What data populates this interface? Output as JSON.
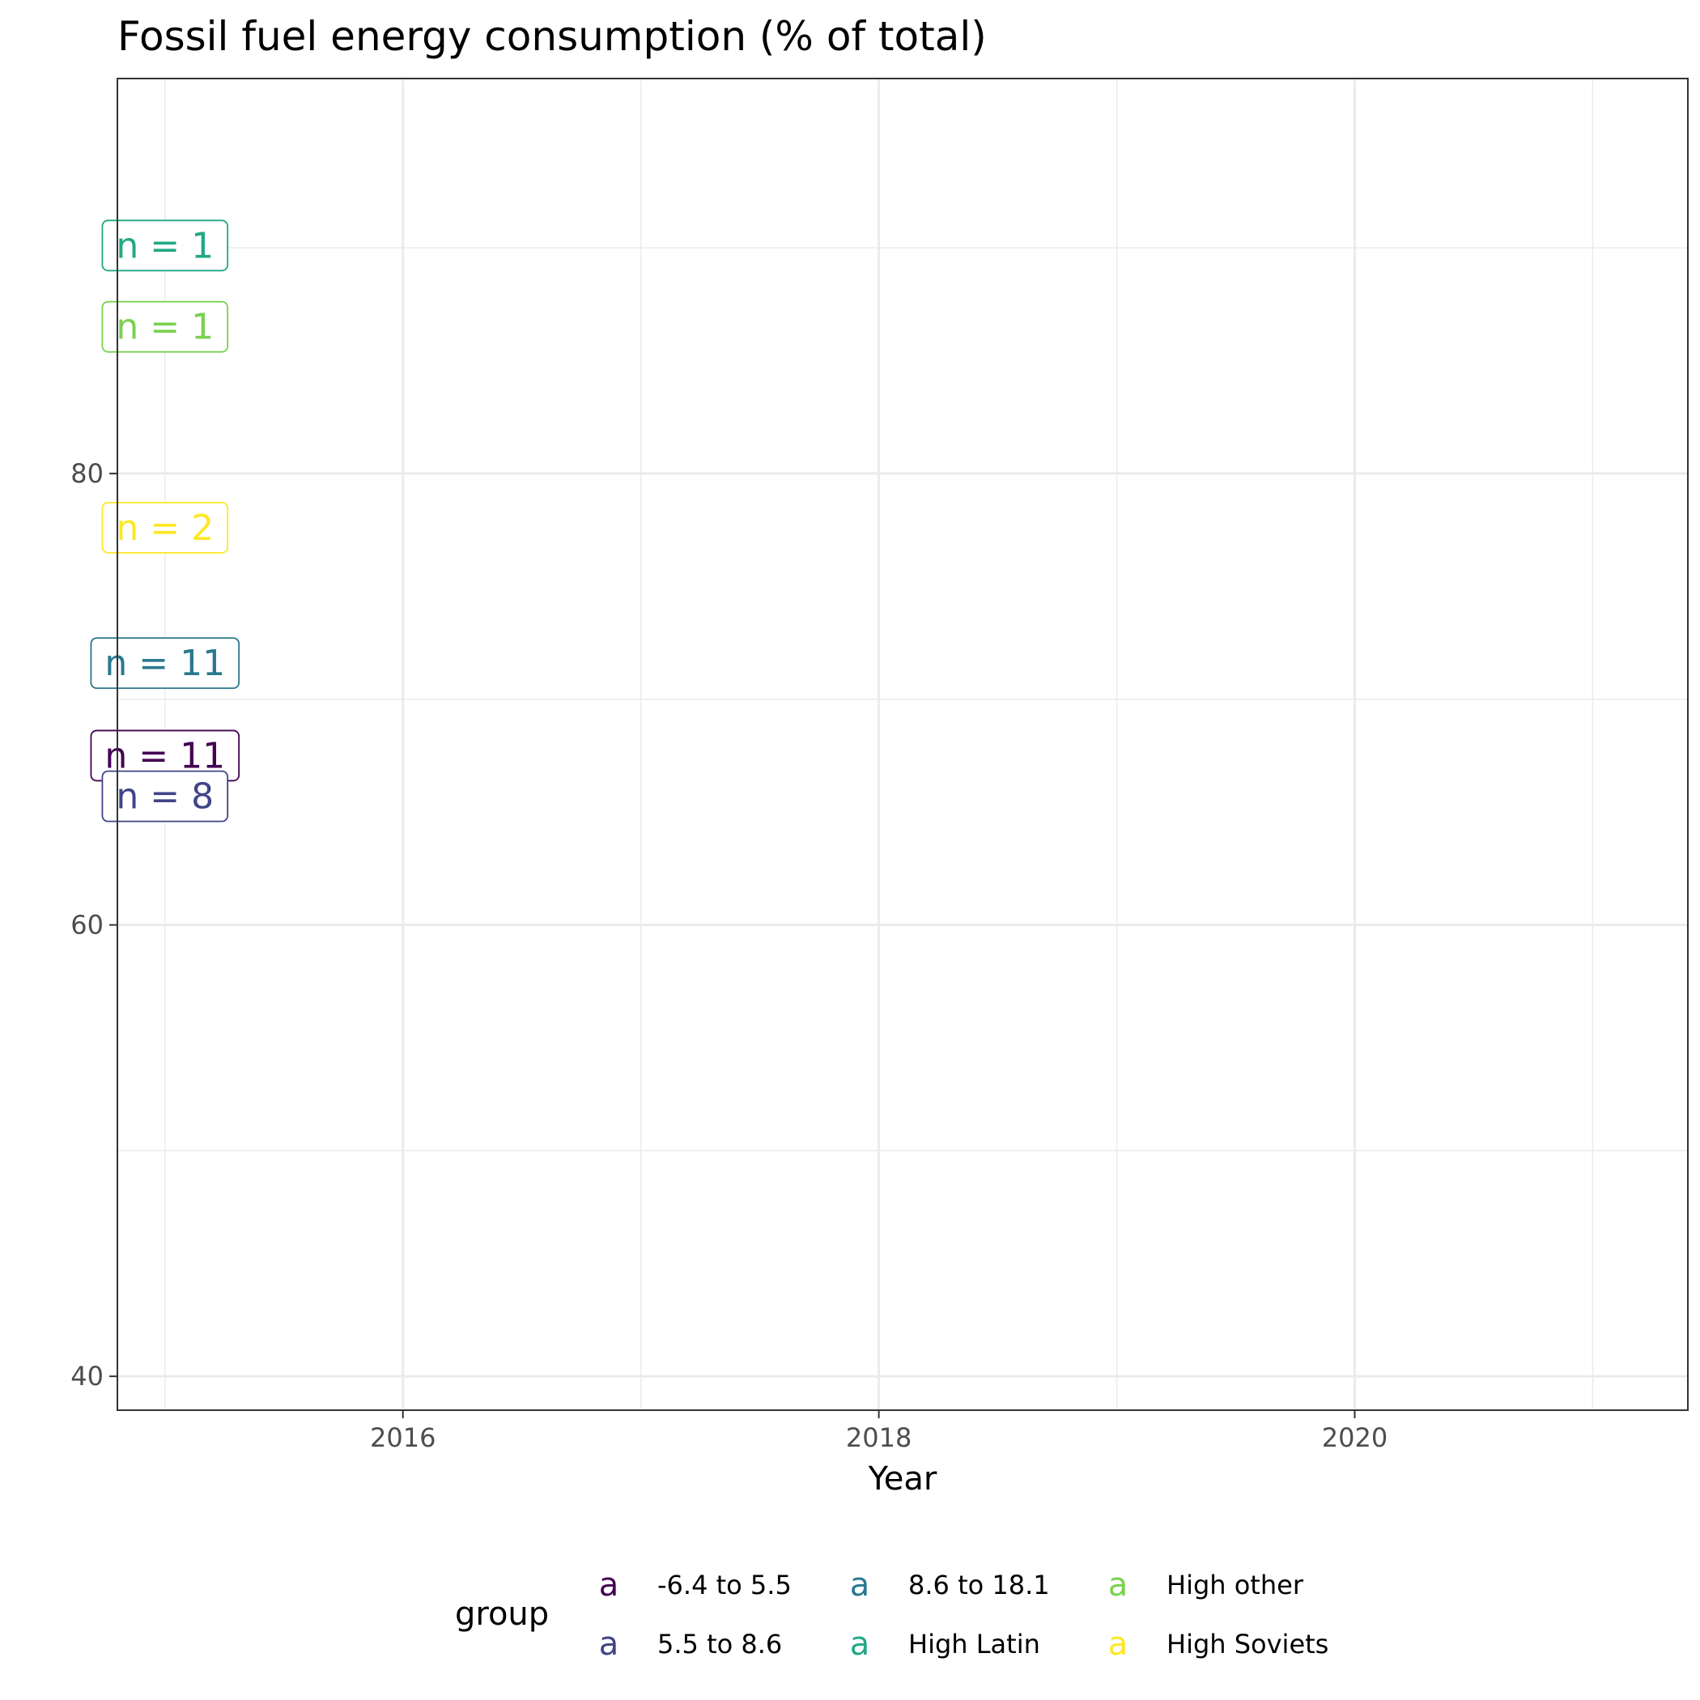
{
  "chart_data": {
    "type": "scatter",
    "title": "Fossil fuel energy consumption (% of total)",
    "xlabel": "Year",
    "ylabel": "",
    "xlim": [
      2014.8,
      2021.4
    ],
    "ylim": [
      38.5,
      97.5
    ],
    "x_ticks": [
      2016,
      2018,
      2020
    ],
    "x_tick_labels": [
      "2016",
      "2018",
      "2020"
    ],
    "x_minor_ticks": [
      2015,
      2017,
      2019,
      2021
    ],
    "y_ticks": [
      40,
      60,
      80
    ],
    "y_tick_labels": [
      "40",
      "60",
      "80"
    ],
    "y_minor_ticks": [
      50,
      70,
      90
    ],
    "grid": true,
    "legend": {
      "title": "group",
      "position": "bottom",
      "key_glyph": "a",
      "entries": [
        {
          "name": "-6.4 to 5.5",
          "color": "#440154"
        },
        {
          "name": "5.5 to 8.6",
          "color": "#414487"
        },
        {
          "name": "8.6 to 18.1",
          "color": "#2A788E"
        },
        {
          "name": "High Latin",
          "color": "#22A884"
        },
        {
          "name": "High other",
          "color": "#7AD151"
        },
        {
          "name": "High Soviets",
          "color": "#FDE725"
        }
      ]
    },
    "series": [
      {
        "name": "-6.4 to 5.5",
        "x": 2015,
        "y": 67.5,
        "label": "n = 11",
        "color": "#440154"
      },
      {
        "name": "5.5 to 8.6",
        "x": 2015,
        "y": 65.7,
        "label": "n = 8",
        "color": "#414487"
      },
      {
        "name": "8.6 to 18.1",
        "x": 2015,
        "y": 71.6,
        "label": "n = 11",
        "color": "#2A788E"
      },
      {
        "name": "High Latin",
        "x": 2015,
        "y": 90.1,
        "label": "n = 1",
        "color": "#22A884"
      },
      {
        "name": "High other",
        "x": 2015,
        "y": 86.5,
        "label": "n = 1",
        "color": "#7AD151"
      },
      {
        "name": "High Soviets",
        "x": 2015,
        "y": 77.6,
        "label": "n = 2",
        "color": "#FDE725"
      }
    ]
  }
}
